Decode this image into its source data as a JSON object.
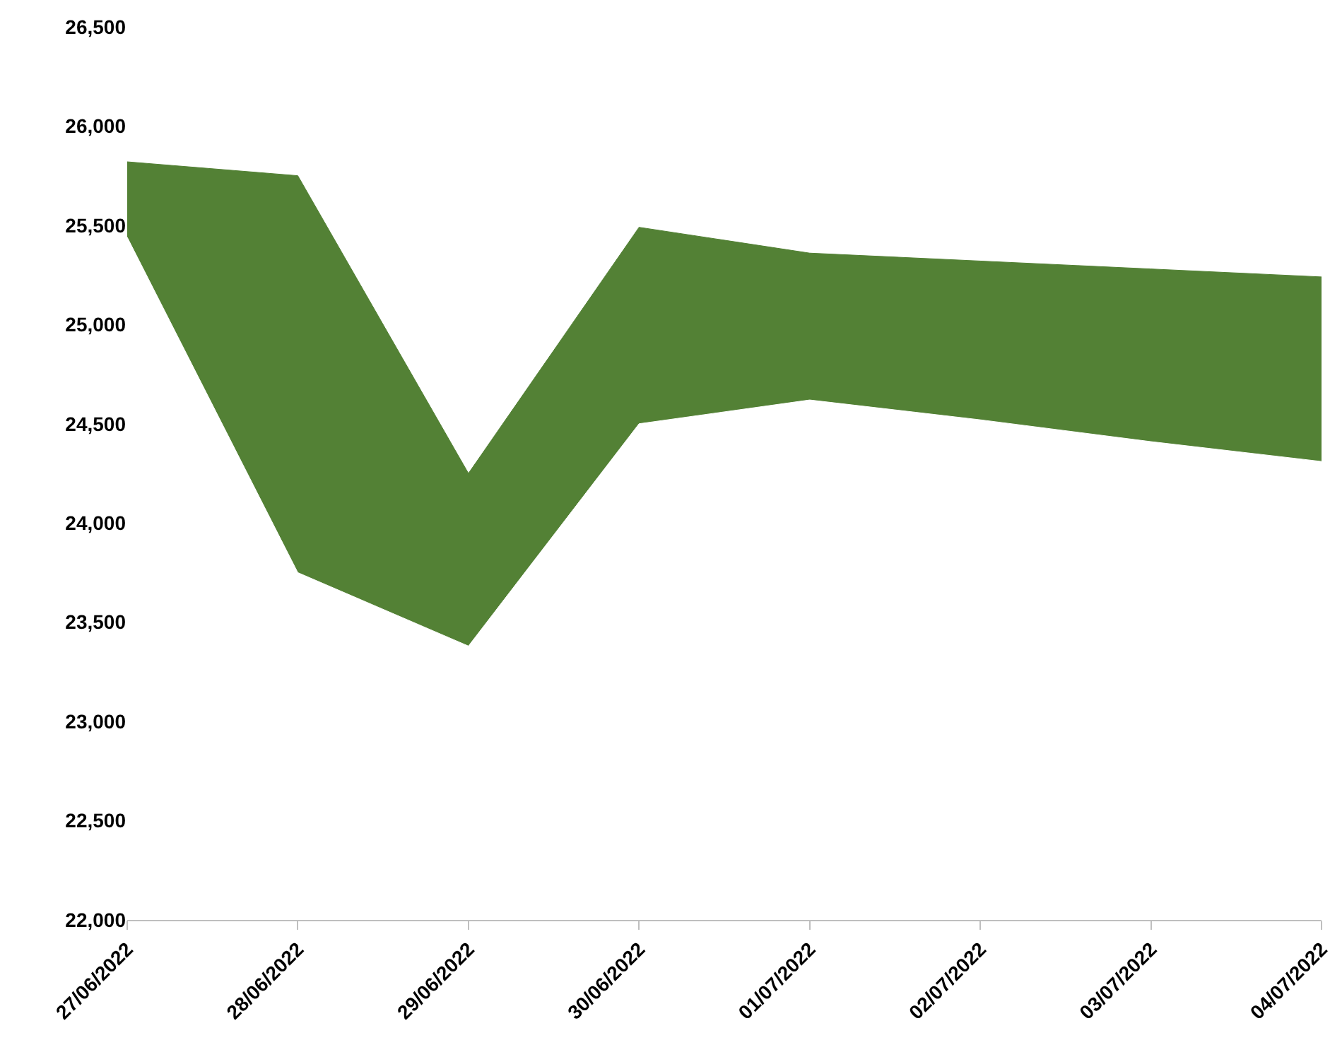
{
  "chart_data": {
    "type": "area",
    "x": [
      "2022-06-27",
      "2022-06-28",
      "2022-06-29",
      "2022-06-30",
      "2022-07-01",
      "2022-07-02",
      "2022-07-03",
      "2022-07-04"
    ],
    "series": [
      {
        "color": "#538135",
        "values": [
          25820,
          25750,
          24250,
          25490,
          25360,
          25320,
          25280,
          25240
        ]
      },
      {
        "color": "#ffffff",
        "values": [
          25440,
          23750,
          23380,
          24500,
          24620,
          24520,
          24410,
          24310
        ]
      }
    ],
    "xlim": [
      "2022-06-27",
      "2022-07-04"
    ],
    "xticks": [
      {
        "value": "2022-06-27",
        "label": "27/06/2022"
      },
      {
        "value": "2022-06-28",
        "label": "28/06/2022"
      },
      {
        "value": "2022-06-29",
        "label": "29/06/2022"
      },
      {
        "value": "2022-06-30",
        "label": "30/06/2022"
      },
      {
        "value": "2022-07-01",
        "label": "01/07/2022"
      },
      {
        "value": "2022-07-02",
        "label": "02/07/2022"
      },
      {
        "value": "2022-07-03",
        "label": "03/07/2022"
      },
      {
        "value": "2022-07-04",
        "label": "04/07/2022"
      }
    ],
    "ylim": [
      22000,
      26500
    ],
    "yticks": [
      {
        "value": 22000,
        "label": "22,000"
      },
      {
        "value": 22500,
        "label": "22,500"
      },
      {
        "value": 23000,
        "label": "23,000"
      },
      {
        "value": 23500,
        "label": "23,500"
      },
      {
        "value": 24000,
        "label": "24,000"
      },
      {
        "value": 24500,
        "label": "24,500"
      },
      {
        "value": 25000,
        "label": "25,000"
      },
      {
        "value": 25500,
        "label": "25,500"
      },
      {
        "value": 26000,
        "label": "26,000"
      },
      {
        "value": 26500,
        "label": "26,500"
      }
    ],
    "grid": false
  }
}
